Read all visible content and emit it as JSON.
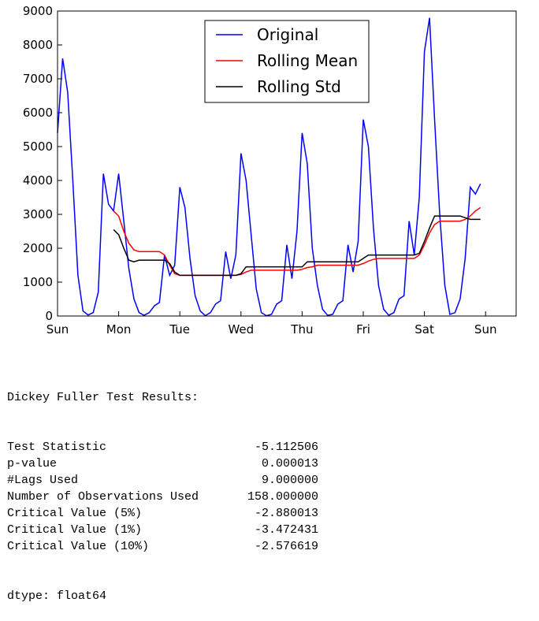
{
  "chart_data": {
    "type": "line",
    "x": [
      0,
      2,
      4,
      6,
      8,
      10,
      12,
      14,
      16,
      18,
      20,
      22,
      24,
      26,
      28,
      30,
      32,
      34,
      36,
      38,
      40,
      42,
      44,
      46,
      48,
      50,
      52,
      54,
      56,
      58,
      60,
      62,
      64,
      66,
      68,
      70,
      72,
      74,
      76,
      78,
      80,
      82,
      84,
      86,
      88,
      90,
      92,
      94,
      96,
      98,
      100,
      102,
      104,
      106,
      108,
      110,
      112,
      114,
      116,
      118,
      120,
      122,
      124,
      126,
      128,
      130,
      132,
      134,
      136,
      138,
      140,
      142,
      144,
      146,
      148,
      150,
      152,
      154,
      156,
      158,
      160,
      162,
      164,
      166
    ],
    "xlim": [
      0,
      180
    ],
    "xticks": [
      {
        "value": 0,
        "label": "Sun"
      },
      {
        "value": 24,
        "label": "Mon"
      },
      {
        "value": 48,
        "label": "Tue"
      },
      {
        "value": 72,
        "label": "Wed"
      },
      {
        "value": 96,
        "label": "Thu"
      },
      {
        "value": 120,
        "label": "Fri"
      },
      {
        "value": 144,
        "label": "Sat"
      },
      {
        "value": 168,
        "label": "Sun"
      }
    ],
    "ylim": [
      0,
      9000
    ],
    "yticks": [
      0,
      1000,
      2000,
      3000,
      4000,
      5000,
      6000,
      7000,
      8000,
      9000
    ],
    "grid": false,
    "legend": "upper center",
    "series": [
      {
        "name": "Original",
        "color": "#0000ff",
        "values": [
          5400,
          7600,
          6600,
          4000,
          1200,
          150,
          30,
          100,
          700,
          4200,
          3300,
          3100,
          4200,
          2800,
          1400,
          500,
          100,
          20,
          100,
          300,
          400,
          1800,
          1200,
          1500,
          3800,
          3200,
          1700,
          600,
          150,
          10,
          100,
          350,
          450,
          1900,
          1100,
          1800,
          4800,
          4000,
          2400,
          800,
          100,
          10,
          50,
          350,
          450,
          2100,
          1100,
          2500,
          5400,
          4500,
          2000,
          900,
          200,
          20,
          50,
          350,
          450,
          2100,
          1300,
          2200,
          5800,
          5000,
          2600,
          900,
          200,
          20,
          100,
          500,
          600,
          2800,
          1800,
          3500,
          7800,
          8800,
          5800,
          3000,
          900,
          50,
          100,
          500,
          1700,
          3800,
          3600,
          3900
        ]
      },
      {
        "name": "Rolling Mean",
        "color": "#ff0000",
        "values": [
          null,
          null,
          null,
          null,
          null,
          null,
          null,
          null,
          null,
          null,
          null,
          3100,
          2950,
          2500,
          2150,
          1950,
          1900,
          1900,
          1900,
          1900,
          1900,
          1800,
          1500,
          1250,
          1200,
          1200,
          1200,
          1200,
          1200,
          1200,
          1200,
          1200,
          1200,
          1200,
          1200,
          1200,
          1230,
          1300,
          1350,
          1350,
          1350,
          1350,
          1350,
          1350,
          1350,
          1350,
          1350,
          1350,
          1380,
          1430,
          1450,
          1500,
          1500,
          1500,
          1500,
          1500,
          1500,
          1500,
          1500,
          1500,
          1550,
          1620,
          1670,
          1700,
          1700,
          1700,
          1700,
          1700,
          1700,
          1700,
          1700,
          1800,
          2100,
          2450,
          2700,
          2800,
          2800,
          2800,
          2800,
          2800,
          2850,
          2950,
          3100,
          3200
        ]
      },
      {
        "name": "Rolling Std",
        "color": "#000000",
        "values": [
          null,
          null,
          null,
          null,
          null,
          null,
          null,
          null,
          null,
          null,
          null,
          2550,
          2400,
          2000,
          1650,
          1600,
          1650,
          1650,
          1650,
          1650,
          1650,
          1650,
          1550,
          1300,
          1200,
          1200,
          1200,
          1200,
          1200,
          1200,
          1200,
          1200,
          1200,
          1200,
          1200,
          1200,
          1250,
          1450,
          1450,
          1450,
          1450,
          1450,
          1450,
          1450,
          1450,
          1450,
          1450,
          1450,
          1450,
          1600,
          1600,
          1600,
          1600,
          1600,
          1600,
          1600,
          1600,
          1600,
          1600,
          1600,
          1700,
          1800,
          1800,
          1800,
          1800,
          1800,
          1800,
          1800,
          1800,
          1800,
          1800,
          1850,
          2200,
          2600,
          2950,
          2950,
          2950,
          2950,
          2950,
          2950,
          2900,
          2850,
          2850,
          2850
        ]
      }
    ]
  },
  "results": {
    "title": "Dickey Fuller Test Results:",
    "rows": [
      [
        "Test Statistic",
        "-5.112506"
      ],
      [
        "p-value",
        "0.000013"
      ],
      [
        "#Lags Used",
        "9.000000"
      ],
      [
        "Number of Observations Used",
        "158.000000"
      ],
      [
        "Critical Value (5%)",
        "-2.880013"
      ],
      [
        "Critical Value (1%)",
        "-3.472431"
      ],
      [
        "Critical Value (10%)",
        "-2.576619"
      ]
    ],
    "dtype": "dtype: float64"
  }
}
